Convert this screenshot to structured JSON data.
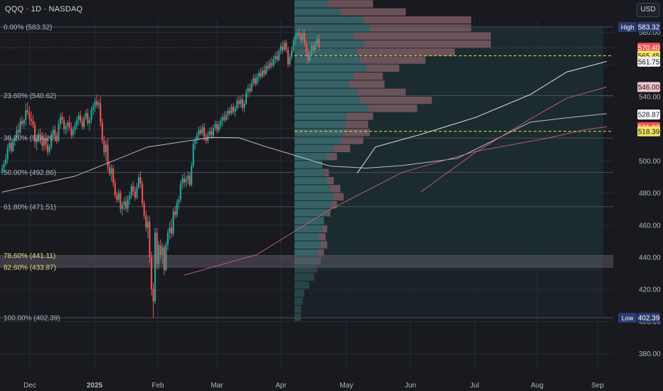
{
  "header": {
    "title": "QQQ · 1D · NASDAQ",
    "currency_button": "USD"
  },
  "colors": {
    "background": "#181a20",
    "up": "#26a69a",
    "down": "#ef5350",
    "grid": "#262a33",
    "fib_line": "#4a4e58",
    "fib_zone": "#5b5560",
    "golden_label": "#e9d77a",
    "text": "#b2b5be",
    "ma_white": "#d6d6d6",
    "ma_red": "#c86472",
    "ma_light": "#dcdcdc",
    "volume_profile_value_area": "#2d5a5e",
    "volume_profile_up": "#3a6c70",
    "volume_profile_down": "#7a5a62",
    "dashed_yellow": "#e8e35a"
  },
  "chart_data": {
    "type": "candlestick",
    "x_axis_labels": [
      "Dec",
      "2025",
      "Feb",
      "Mar",
      "Apr",
      "May",
      "Jun",
      "Jul",
      "Aug",
      "Sep"
    ],
    "y_axis_ticks": [
      380,
      400,
      420,
      440,
      460,
      480,
      500,
      520,
      540,
      560,
      580
    ],
    "ylim": [
      373,
      590
    ],
    "fib_levels": [
      {
        "label": "0.00% (583.32)",
        "price": 583.32
      },
      {
        "label": "23.60% (540.62)",
        "price": 540.62
      },
      {
        "label": "38.20% (514.20)",
        "price": 514.2
      },
      {
        "label": "50.00% (492.86)",
        "price": 492.86
      },
      {
        "label": "61.80% (471.51)",
        "price": 471.51
      },
      {
        "label": "78.60% (441.11)",
        "price": 441.11
      },
      {
        "label": "82.60% (433.87)",
        "price": 433.87
      },
      {
        "label": "100.00% (402.39)",
        "price": 402.39
      }
    ],
    "price_tags": [
      {
        "label": "High",
        "value": "583.32",
        "price": 583.32,
        "bg": "#2a3a6e",
        "fg": "#ffffff"
      },
      {
        "label": "",
        "value": "570.40",
        "price": 570.4,
        "bg": "#ef5350",
        "fg": "#ffffff"
      },
      {
        "label": "",
        "value": "565.45",
        "price": 565.45,
        "bg": "#f5e663",
        "fg": "#131722"
      },
      {
        "label": "",
        "value": "561.75",
        "price": 561.75,
        "bg": "#f0f0f0",
        "fg": "#131722"
      },
      {
        "label": "",
        "value": "546.00",
        "price": 546.0,
        "bg": "#f2c4c8",
        "fg": "#131722"
      },
      {
        "label": "",
        "value": "528.87",
        "price": 528.87,
        "bg": "#ffffff",
        "fg": "#131722"
      },
      {
        "label": "",
        "value": "521.02",
        "price": 521.02,
        "bg": "#ef5350",
        "fg": "#ffffff"
      },
      {
        "label": "",
        "value": "518.39",
        "price": 518.39,
        "bg": "#f5e663",
        "fg": "#131722"
      },
      {
        "label": "Low",
        "value": "402.39",
        "price": 402.39,
        "bg": "#2a3a6e",
        "fg": "#ffffff"
      }
    ],
    "dashed_levels": [
      565.45,
      518.39
    ],
    "candles": [
      [
        492.6,
        497.8,
        491.4,
        495.2
      ],
      [
        495.2,
        500.3,
        493.0,
        498.1
      ],
      [
        498.1,
        504.4,
        496.7,
        501.1
      ],
      [
        501.1,
        510.5,
        498.2,
        508.0
      ],
      [
        508.0,
        513.0,
        505.8,
        511.2
      ],
      [
        511.2,
        513.8,
        504.5,
        506.0
      ],
      [
        506.0,
        514.1,
        505.6,
        512.5
      ],
      [
        512.5,
        516.0,
        509.3,
        514.7
      ],
      [
        514.7,
        521.9,
        512.1,
        519.3
      ],
      [
        519.3,
        523.3,
        515.0,
        517.8
      ],
      [
        517.8,
        527.1,
        516.0,
        524.9
      ],
      [
        524.9,
        528.0,
        521.3,
        523.1
      ],
      [
        523.1,
        526.2,
        519.7,
        525.4
      ],
      [
        525.4,
        535.8,
        521.8,
        531.5
      ],
      [
        531.5,
        536.4,
        528.5,
        530.2
      ],
      [
        530.2,
        534.0,
        522.4,
        526.1
      ],
      [
        526.1,
        530.7,
        521.7,
        524.8
      ],
      [
        524.8,
        528.5,
        520.5,
        522.3
      ],
      [
        522.3,
        524.5,
        508.3,
        511.7
      ],
      [
        511.7,
        516.5,
        506.5,
        514.6
      ],
      [
        514.6,
        519.4,
        511.4,
        516.8
      ],
      [
        516.8,
        520.2,
        510.4,
        512.2
      ],
      [
        512.2,
        518.0,
        506.4,
        509.5
      ],
      [
        509.5,
        517.2,
        506.1,
        514.6
      ],
      [
        514.6,
        517.6,
        507.1,
        510.1
      ],
      [
        510.1,
        514.9,
        503.4,
        505.8
      ],
      [
        505.8,
        510.3,
        504.0,
        508.7
      ],
      [
        508.7,
        518.6,
        506.9,
        516.4
      ],
      [
        516.4,
        521.6,
        514.6,
        519.3
      ],
      [
        519.3,
        522.3,
        513.5,
        515.9
      ],
      [
        515.9,
        518.0,
        510.3,
        512.3
      ],
      [
        512.3,
        525.9,
        511.8,
        522.8
      ],
      [
        522.8,
        529.8,
        519.9,
        527.4
      ],
      [
        527.4,
        530.4,
        523.1,
        525.5
      ],
      [
        525.5,
        527.3,
        517.1,
        519.8
      ],
      [
        519.8,
        523.6,
        516.2,
        521.4
      ],
      [
        521.4,
        525.3,
        517.6,
        523.9
      ],
      [
        523.9,
        528.0,
        518.9,
        520.7
      ],
      [
        520.7,
        524.1,
        513.8,
        516.0
      ],
      [
        516.0,
        521.4,
        514.2,
        519.3
      ],
      [
        519.3,
        524.5,
        516.6,
        522.1
      ],
      [
        522.1,
        527.5,
        519.5,
        525.4
      ],
      [
        525.4,
        530.4,
        522.0,
        528.3
      ],
      [
        528.3,
        531.3,
        523.1,
        524.9
      ],
      [
        524.9,
        527.3,
        519.2,
        521.2
      ],
      [
        521.2,
        528.9,
        519.5,
        526.8
      ],
      [
        526.8,
        532.0,
        525.3,
        529.9
      ],
      [
        529.9,
        532.7,
        521.6,
        523.4
      ],
      [
        523.4,
        527.2,
        518.6,
        525.6
      ],
      [
        525.6,
        534.0,
        523.0,
        531.8
      ],
      [
        531.8,
        536.2,
        528.5,
        533.7
      ],
      [
        533.7,
        539.4,
        530.4,
        537.2
      ],
      [
        537.2,
        541.2,
        532.7,
        534.8
      ],
      [
        534.8,
        538.1,
        532.3,
        536.1
      ],
      [
        536.1,
        540.6,
        521.3,
        523.8
      ],
      [
        523.8,
        526.4,
        510.5,
        512.6
      ],
      [
        512.6,
        515.7,
        502.6,
        505.4
      ],
      [
        505.4,
        512.8,
        500.0,
        510.1
      ],
      [
        510.1,
        514.3,
        493.5,
        496.2
      ],
      [
        496.2,
        499.6,
        490.4,
        492.0
      ],
      [
        492.0,
        497.9,
        487.1,
        495.4
      ],
      [
        495.4,
        497.6,
        484.0,
        486.3
      ],
      [
        486.3,
        488.8,
        476.8,
        478.5
      ],
      [
        478.5,
        481.1,
        473.9,
        475.8
      ],
      [
        475.8,
        482.4,
        474.2,
        480.2
      ],
      [
        480.2,
        481.8,
        467.6,
        470.1
      ],
      [
        470.1,
        474.7,
        466.1,
        472.6
      ],
      [
        472.6,
        477.2,
        469.4,
        474.8
      ],
      [
        474.8,
        478.3,
        468.5,
        470.3
      ],
      [
        470.3,
        478.5,
        467.8,
        476.1
      ],
      [
        476.1,
        480.9,
        472.6,
        478.4
      ],
      [
        478.4,
        486.1,
        476.2,
        484.3
      ],
      [
        484.3,
        487.3,
        478.4,
        481.0
      ],
      [
        481.0,
        484.2,
        475.3,
        477.2
      ],
      [
        477.2,
        486.3,
        476.1,
        483.6
      ],
      [
        483.6,
        492.1,
        482.3,
        489.8
      ],
      [
        489.8,
        493.6,
        483.2,
        485.7
      ],
      [
        485.7,
        487.7,
        471.2,
        473.6
      ],
      [
        473.6,
        475.5,
        463.8,
        466.0
      ],
      [
        466.0,
        469.1,
        456.2,
        458.5
      ],
      [
        458.5,
        466.1,
        451.9,
        462.3
      ],
      [
        462.3,
        465.5,
        436.4,
        440.1
      ],
      [
        440.1,
        443.5,
        416.2,
        420.3
      ],
      [
        420.3,
        424.1,
        402.4,
        412.5
      ],
      [
        412.5,
        458.5,
        411.0,
        455.3
      ],
      [
        455.3,
        458.2,
        432.6,
        436.1
      ],
      [
        436.1,
        449.9,
        432.8,
        447.6
      ],
      [
        447.6,
        451.1,
        438.8,
        441.5
      ],
      [
        441.5,
        449.2,
        436.3,
        446.3
      ],
      [
        446.3,
        448.1,
        428.8,
        432.1
      ],
      [
        432.1,
        449.9,
        431.3,
        447.9
      ],
      [
        447.9,
        457.7,
        444.6,
        455.3
      ],
      [
        455.3,
        462.2,
        451.0,
        458.6
      ],
      [
        458.6,
        464.1,
        452.1,
        454.7
      ],
      [
        454.7,
        470.8,
        453.0,
        468.6
      ],
      [
        468.6,
        471.9,
        464.2,
        466.3
      ],
      [
        466.3,
        476.2,
        464.5,
        473.9
      ],
      [
        473.9,
        478.1,
        470.0,
        476.0
      ],
      [
        476.0,
        488.1,
        474.2,
        485.9
      ],
      [
        485.9,
        491.6,
        482.4,
        489.1
      ],
      [
        489.1,
        492.3,
        484.1,
        486.8
      ],
      [
        486.8,
        490.9,
        483.2,
        488.4
      ],
      [
        488.4,
        493.5,
        485.3,
        490.7
      ],
      [
        490.7,
        493.0,
        483.7,
        485.2
      ],
      [
        485.2,
        499.2,
        484.0,
        497.0
      ],
      [
        497.0,
        513.0,
        495.7,
        510.7
      ],
      [
        510.7,
        515.0,
        507.0,
        512.9
      ],
      [
        512.9,
        518.2,
        510.4,
        516.1
      ],
      [
        516.1,
        521.6,
        513.0,
        519.3
      ],
      [
        519.3,
        522.0,
        515.9,
        517.2
      ],
      [
        517.2,
        523.1,
        515.6,
        520.8
      ],
      [
        520.8,
        523.7,
        512.4,
        514.7
      ],
      [
        514.7,
        517.5,
        510.6,
        512.6
      ],
      [
        512.6,
        518.7,
        510.9,
        516.3
      ],
      [
        516.3,
        520.7,
        514.9,
        518.5
      ],
      [
        518.5,
        521.3,
        513.6,
        515.9
      ],
      [
        515.9,
        522.5,
        514.3,
        520.4
      ],
      [
        520.4,
        525.1,
        518.7,
        523.0
      ],
      [
        523.0,
        524.9,
        517.2,
        519.1
      ],
      [
        519.1,
        524.9,
        517.6,
        522.4
      ],
      [
        522.4,
        527.3,
        519.9,
        525.0
      ],
      [
        525.0,
        529.4,
        521.4,
        527.3
      ],
      [
        527.3,
        530.9,
        523.8,
        525.6
      ],
      [
        525.6,
        531.0,
        524.5,
        528.8
      ],
      [
        528.8,
        532.7,
        525.4,
        531.2
      ],
      [
        531.2,
        533.9,
        528.1,
        529.6
      ],
      [
        529.6,
        535.6,
        528.4,
        533.8
      ],
      [
        533.8,
        535.9,
        528.8,
        530.7
      ],
      [
        530.7,
        534.4,
        527.6,
        532.6
      ],
      [
        532.6,
        539.4,
        531.3,
        537.5
      ],
      [
        537.5,
        540.8,
        533.0,
        535.4
      ],
      [
        535.4,
        540.3,
        533.0,
        538.2
      ],
      [
        538.2,
        541.7,
        530.9,
        533.0
      ],
      [
        533.0,
        537.7,
        530.1,
        535.6
      ],
      [
        535.6,
        544.9,
        534.8,
        542.7
      ],
      [
        542.7,
        547.3,
        539.5,
        545.1
      ],
      [
        545.1,
        548.3,
        541.3,
        543.4
      ],
      [
        543.4,
        550.7,
        542.6,
        548.3
      ],
      [
        548.3,
        553.8,
        546.6,
        551.5
      ],
      [
        551.5,
        554.1,
        546.3,
        548.0
      ],
      [
        548.0,
        554.5,
        546.9,
        552.3
      ],
      [
        552.3,
        556.8,
        549.5,
        554.8
      ],
      [
        554.8,
        557.9,
        550.9,
        552.5
      ],
      [
        552.5,
        558.6,
        551.5,
        556.4
      ],
      [
        556.4,
        559.8,
        552.5,
        554.1
      ],
      [
        554.1,
        561.6,
        553.4,
        559.2
      ],
      [
        559.2,
        562.4,
        555.8,
        557.7
      ],
      [
        557.7,
        563.3,
        556.5,
        560.9
      ],
      [
        560.9,
        564.4,
        557.7,
        559.2
      ],
      [
        559.2,
        565.6,
        557.9,
        563.4
      ],
      [
        563.4,
        567.7,
        560.5,
        565.3
      ],
      [
        565.3,
        568.7,
        561.3,
        562.9
      ],
      [
        562.9,
        569.8,
        561.9,
        568.1
      ],
      [
        568.1,
        573.3,
        566.4,
        571.4
      ],
      [
        571.4,
        574.7,
        566.5,
        568.9
      ],
      [
        568.9,
        575.3,
        568.1,
        573.5
      ],
      [
        573.5,
        575.5,
        567.2,
        569.4
      ],
      [
        569.4,
        571.1,
        558.1,
        560.2
      ],
      [
        560.2,
        566.6,
        558.8,
        564.7
      ],
      [
        564.7,
        571.3,
        563.0,
        569.0
      ],
      [
        569.0,
        577.3,
        567.3,
        575.1
      ],
      [
        575.1,
        579.3,
        572.4,
        577.6
      ],
      [
        577.6,
        581.5,
        575.0,
        579.8
      ],
      [
        579.8,
        583.3,
        576.2,
        578.2
      ],
      [
        578.2,
        580.4,
        573.1,
        575.0
      ],
      [
        575.0,
        582.0,
        573.8,
        579.7
      ],
      [
        579.7,
        582.0,
        571.4,
        573.2
      ],
      [
        573.2,
        575.6,
        565.1,
        567.3
      ],
      [
        567.3,
        570.4,
        560.3,
        562.5
      ],
      [
        562.5,
        568.8,
        561.4,
        566.4
      ],
      [
        566.4,
        574.1,
        565.2,
        571.6
      ],
      [
        571.6,
        574.4,
        567.5,
        569.1
      ],
      [
        569.1,
        574.9,
        567.6,
        572.4
      ],
      [
        572.4,
        578.1,
        571.1,
        575.8
      ],
      [
        575.8,
        578.4,
        568.7,
        570.4
      ]
    ],
    "volume_profile": {
      "price_from": 400,
      "bin_size": 5,
      "up_lengths": [
        4,
        4,
        5,
        6,
        9,
        12,
        12,
        14,
        14,
        16,
        15,
        17,
        18,
        20,
        22,
        24,
        22,
        20,
        18,
        17,
        20,
        24,
        28,
        30,
        31,
        32,
        45,
        40,
        38,
        33,
        36,
        44,
        40,
        38,
        42,
        36,
        46,
        42,
        28,
        20
      ],
      "down_lengths": [
        0,
        0,
        0,
        0,
        0,
        0,
        2,
        2,
        4,
        4,
        4,
        3,
        0,
        2,
        4,
        6,
        6,
        4,
        3,
        0,
        6,
        10,
        14,
        16,
        14,
        16,
        30,
        44,
        30,
        22,
        18,
        20,
        40,
        60,
        78,
        84,
        62,
        66,
        40,
        28
      ],
      "value_area": [
        432,
        583
      ]
    },
    "moving_averages": [
      {
        "points": [
          [
            0,
            480.6
          ],
          [
            40,
            490.5
          ],
          [
            80,
            508.7
          ],
          [
            115,
            514.6
          ],
          [
            130,
            514.4
          ],
          [
            145,
            508.8
          ],
          [
            160,
            503.7
          ],
          [
            180,
            496.8
          ],
          [
            200,
            495.5
          ],
          [
            220,
            497.2
          ],
          [
            250,
            501.6
          ],
          [
            290,
            524.1
          ],
          [
            310,
            526.8
          ],
          [
            332,
            529.4
          ]
        ]
      },
      {
        "points": [
          [
            100,
            428.9
          ],
          [
            140,
            441.8
          ],
          [
            180,
            469.7
          ],
          [
            220,
            493.0
          ],
          [
            260,
            505.9
          ],
          [
            300,
            514.3
          ],
          [
            320,
            519.4
          ],
          [
            332,
            521.3
          ]
        ]
      },
      {
        "points": [
          [
            195,
            492.4
          ],
          [
            205,
            508.7
          ],
          [
            230,
            516.5
          ],
          [
            260,
            527.1
          ],
          [
            290,
            541.3
          ],
          [
            310,
            555.3
          ],
          [
            332,
            561.9
          ]
        ]
      },
      {
        "points": [
          [
            230,
            480.8
          ],
          [
            260,
            505.4
          ],
          [
            290,
            526.1
          ],
          [
            310,
            539.0
          ],
          [
            332,
            546.0
          ]
        ]
      }
    ]
  }
}
